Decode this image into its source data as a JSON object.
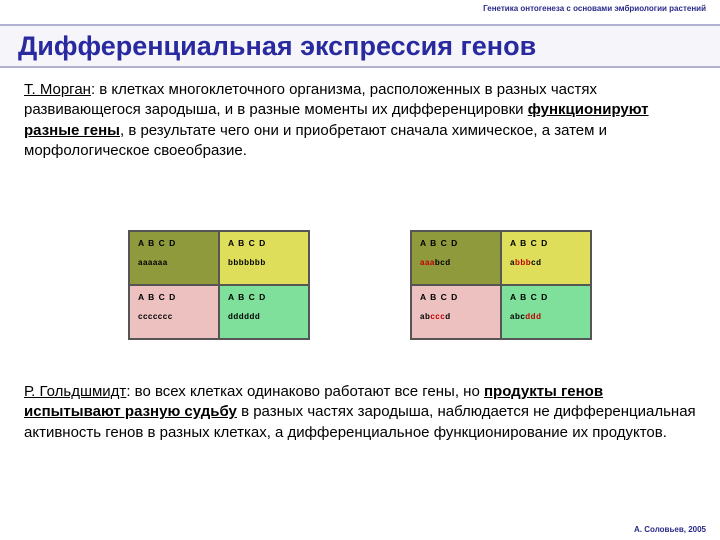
{
  "header_label": "Генетика онтогенеза с основами эмбриологии растений",
  "title": "Дифференциальная экспрессия генов",
  "paragraph1": {
    "author": "Т. Морган",
    "text_before": ": в клетках многоклеточного организма, расположенных в разных частях развивающегося зародыша, и в разные моменты их дифференцировки ",
    "emph": "функционируют разные гены",
    "text_after": ", в результате чего они и приобретают сначала химическое, а затем и морфологическое своеобразие."
  },
  "paragraph2": {
    "author": "Р. Гольдшмидт",
    "text_before": ": во всех клетках одинаково работают все гены, но ",
    "emph": "продукты генов испытывают разную судьбу",
    "text_after": " в разных частях зародыша, наблюдается не дифференциальная активность генов в разных клетках, а дифференциальное функционирование их продуктов."
  },
  "footer": "А. Соловьев, 2005",
  "colors": {
    "olive": "#8f9a3c",
    "yellow": "#dede5a",
    "pink": "#eec1c1",
    "green": "#7ee09a",
    "red_text": "#c00000"
  },
  "grid_left": {
    "cells": [
      {
        "genes": "A B C D",
        "prod": "aaaaaa",
        "bg": "olive"
      },
      {
        "genes": "A B C D",
        "prod": "bbbbbbb",
        "bg": "yellow"
      },
      {
        "genes": "A B C D",
        "prod": "ccccccc",
        "bg": "pink"
      },
      {
        "genes": "A B C D",
        "prod": "dddddd",
        "bg": "green"
      }
    ]
  },
  "grid_right": {
    "cells": [
      {
        "genes": "A B C D",
        "bg": "olive",
        "prod_html": "<span style='color:#c00000'>aaa</span>bcd"
      },
      {
        "genes": "A B C D",
        "bg": "yellow",
        "prod_html": "a<span style='color:#c00000'>bbb</span>cd"
      },
      {
        "genes": "A B C D",
        "bg": "pink",
        "prod_html": "ab<span style='color:#c00000'>ccc</span>d"
      },
      {
        "genes": "A B C D",
        "bg": "green",
        "prod_html": "abc<span style='color:#c00000'>ddd</span>"
      }
    ]
  }
}
